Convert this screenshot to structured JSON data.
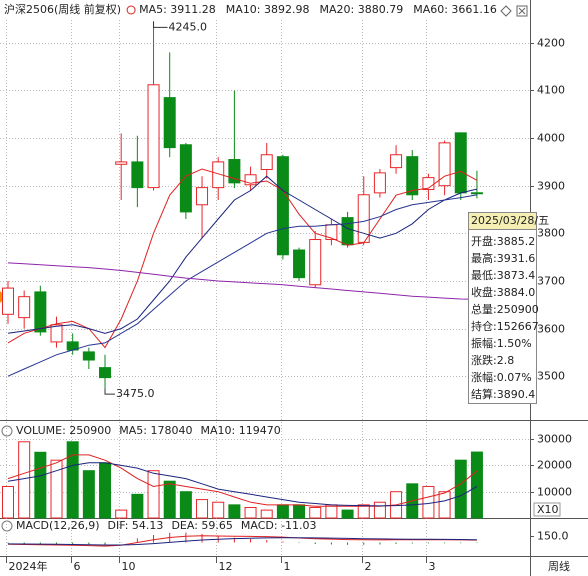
{
  "chart_data": [
    {
      "type": "candlestick",
      "title": "沪深2506(周线 前复权)",
      "period": "周线",
      "up_color": "#e8262a",
      "down_color": "#0a8a17",
      "grid": true,
      "categories": [
        "2024年",
        null,
        null,
        null,
        "6",
        null,
        null,
        "10",
        null,
        null,
        null,
        null,
        null,
        "12",
        null,
        null,
        null,
        "1",
        null,
        null,
        null,
        null,
        "2",
        null,
        null,
        null,
        "3",
        null,
        null,
        null
      ],
      "open": [
        3630,
        3623,
        3677,
        3572,
        3572,
        3551,
        3518,
        3945,
        3950,
        3896,
        4085,
        3986,
        3860,
        3896,
        3955,
        3902,
        3934,
        3961,
        3765,
        3692,
        3787,
        3833,
        3781,
        3885,
        3938,
        3961,
        3892,
        3900,
        4011,
        3885.2
      ],
      "high": [
        3700,
        3680,
        3690,
        3625,
        3590,
        3560,
        3545,
        4010,
        4005,
        4245,
        4180,
        3990,
        3920,
        3960,
        4100,
        3940,
        3990,
        3965,
        3770,
        3805,
        3830,
        3845,
        3920,
        3935,
        3985,
        3975,
        3925,
        3995,
        4012,
        3931.6
      ],
      "low": [
        3610,
        3600,
        3585,
        3560,
        3545,
        3515,
        3475,
        3870,
        3855,
        3890,
        3960,
        3830,
        3790,
        3870,
        3895,
        3890,
        3915,
        3745,
        3700,
        3685,
        3775,
        3770,
        3775,
        3875,
        3925,
        3870,
        3870,
        3880,
        3870,
        3873.4
      ],
      "close": [
        3685,
        3667,
        3593,
        3608,
        3555,
        3534,
        3497,
        3950,
        3896,
        4112,
        3980,
        3845,
        3896,
        3950,
        3906,
        3923,
        3965,
        3755,
        3707,
        3787,
        3818,
        3776,
        3881,
        3927,
        3965,
        3881,
        3917,
        3990,
        3885,
        3884.0
      ],
      "high_label": "4245.0",
      "low_label": "3475.0",
      "series": [
        {
          "name": "MA5: 3911.28",
          "color": "#e02020",
          "values": [
            3570,
            3590,
            3600,
            3610,
            3615,
            3600,
            3560,
            3620,
            3700,
            3800,
            3880,
            3920,
            3935,
            3925,
            3915,
            3905,
            3910,
            3890,
            3840,
            3800,
            3790,
            3775,
            3780,
            3830,
            3880,
            3890,
            3895,
            3920,
            3930,
            3911.28
          ]
        },
        {
          "name": "MA10: 3892.98",
          "color": "#1a237e",
          "values": [
            3590,
            3595,
            3600,
            3605,
            3608,
            3600,
            3590,
            3600,
            3620,
            3660,
            3700,
            3750,
            3790,
            3830,
            3870,
            3890,
            3920,
            3890,
            3870,
            3850,
            3830,
            3810,
            3800,
            3790,
            3800,
            3820,
            3850,
            3870,
            3885,
            3892.98
          ]
        },
        {
          "name": "MA20: 3880.79",
          "color": "#283593",
          "values": [
            3500,
            3515,
            3530,
            3545,
            3555,
            3565,
            3570,
            3590,
            3610,
            3640,
            3670,
            3700,
            3720,
            3740,
            3760,
            3780,
            3800,
            3810,
            3815,
            3815,
            3818,
            3820,
            3825,
            3835,
            3850,
            3860,
            3865,
            3870,
            3875,
            3880.79
          ]
        },
        {
          "name": "MA60: 3661.16",
          "color": "#8e24aa",
          "values": [
            3738,
            3736,
            3734,
            3732,
            3730,
            3728,
            3725,
            3722,
            3718,
            3714,
            3710,
            3706,
            3703,
            3700,
            3698,
            3696,
            3694,
            3692,
            3689,
            3686,
            3683,
            3680,
            3677,
            3674,
            3671,
            3668,
            3666,
            3664,
            3662,
            3661.16
          ]
        }
      ],
      "ylim": [
        3408,
        4248
      ],
      "yticks": [
        3500,
        3600,
        3700,
        3800,
        3900,
        4000,
        4100,
        4200
      ],
      "tooltip": {
        "title": "2025/03/28/五",
        "rows": [
          "开盘:3885.2",
          "最高:3931.6",
          "最低:3873.4",
          "收盘:3884.0",
          "总量:250900",
          "持仓:152667",
          "振幅:1.50%",
          "涨跌:2.8",
          "涨幅:0.07%",
          "结算:3890.4"
        ]
      }
    },
    {
      "type": "volume",
      "unit_label": "X10",
      "series": [
        {
          "name": "VOLUME: 250900",
          "color": "#5b1a4a",
          "values": [
            12000,
            29000,
            25000,
            22000,
            29000,
            18000,
            21000,
            3000,
            9000,
            18000,
            14000,
            10000,
            7000,
            6000,
            5000,
            4000,
            3000,
            5000,
            5000,
            4000,
            5000,
            3000,
            5000,
            6000,
            10000,
            13000,
            12000,
            10000,
            22000,
            25090
          ]
        },
        {
          "name": "MA5: 178040",
          "color": "#e02020",
          "values": [
            15000,
            17000,
            19000,
            21000,
            24000,
            24000,
            22000,
            19000,
            15000,
            12000,
            13000,
            12000,
            11000,
            10000,
            8000,
            6000,
            5000,
            5000,
            5000,
            4500,
            4500,
            4500,
            4500,
            4500,
            5000,
            6500,
            8000,
            9500,
            13000,
            17804
          ]
        },
        {
          "name": "MA10: 119470",
          "color": "#1a237e",
          "values": [
            14000,
            15000,
            16000,
            18000,
            20000,
            21000,
            21000,
            20000,
            19000,
            17000,
            16000,
            15000,
            13000,
            11000,
            10000,
            9000,
            8000,
            7000,
            6000,
            5500,
            5000,
            4800,
            4700,
            4600,
            4700,
            5000,
            5500,
            6500,
            8500,
            11947
          ]
        }
      ],
      "ylim": [
        0,
        35000
      ],
      "yticks": [
        10000,
        20000,
        30000
      ]
    },
    {
      "type": "macd",
      "title": "MACD(12,26,9)",
      "series": [
        {
          "name": "DIF: 54.13",
          "color": "#e02020",
          "values": [
            -40,
            -45,
            -50,
            -55,
            -60,
            -70,
            -80,
            -60,
            0,
            60,
            110,
            140,
            150,
            145,
            140,
            135,
            130,
            120,
            100,
            85,
            75,
            65,
            60,
            58,
            60,
            62,
            62,
            60,
            58,
            54.13
          ]
        },
        {
          "name": "DEA: 59.65",
          "color": "#1a237e",
          "values": [
            -30,
            -33,
            -36,
            -40,
            -44,
            -50,
            -55,
            -56,
            -45,
            -24,
            3,
            30,
            55,
            73,
            86,
            96,
            103,
            107,
            106,
            102,
            97,
            91,
            85,
            80,
            76,
            73,
            71,
            69,
            66,
            59.65
          ]
        },
        {
          "name": "MACD: -11.03",
          "color": "#333333",
          "values": [
            -20,
            -24,
            -28,
            -30,
            -32,
            -40,
            -50,
            -8,
            90,
            168,
            214,
            220,
            190,
            144,
            108,
            78,
            54,
            26,
            -12,
            -34,
            -44,
            -52,
            -50,
            -44,
            -32,
            -22,
            -18,
            -18,
            -16,
            -11.03
          ]
        }
      ],
      "ylim": [
        -300,
        500
      ],
      "yticks": [
        {
          "value": 150,
          "label": "150.0"
        }
      ]
    }
  ]
}
